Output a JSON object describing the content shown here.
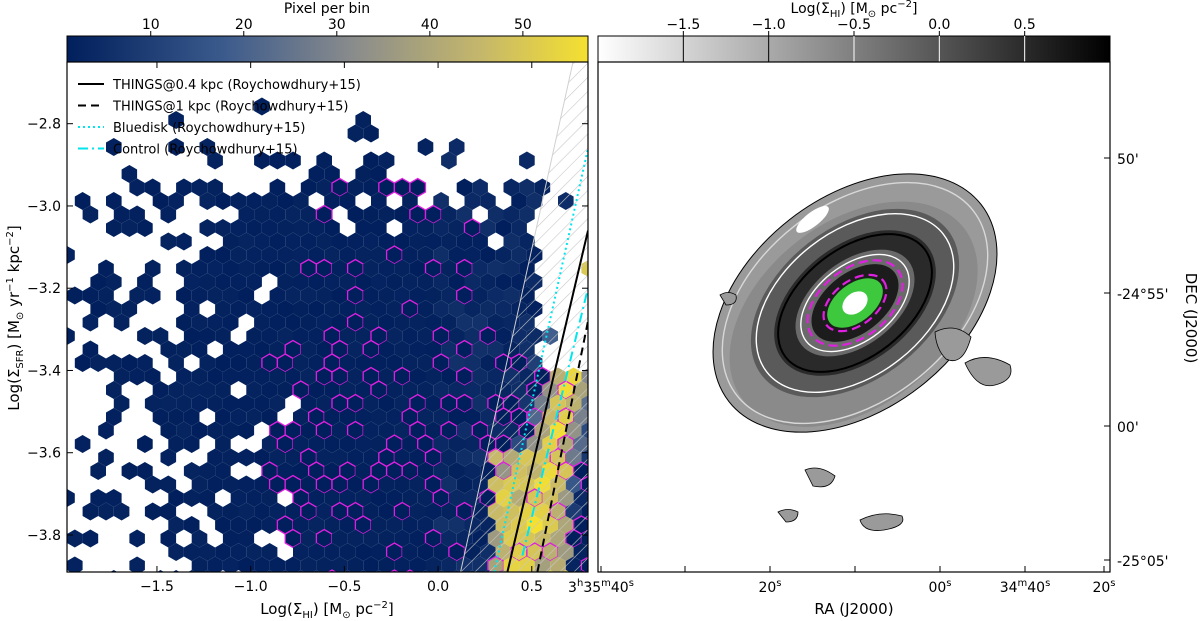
{
  "chart_data": [
    {
      "type": "hexbin",
      "panel": "left",
      "xlabel": "Log(Σ_HI) [M⊙ pc⁻²]",
      "ylabel": "Log(Σ_SFR) [M⊙ yr⁻¹ kpc⁻²]",
      "xlim": [
        -1.98,
        0.8
      ],
      "ylim": [
        -3.89,
        -2.65
      ],
      "xticks": [
        -1.5,
        -1.0,
        -0.5,
        0.0,
        0.5
      ],
      "xtick_labels": [
        "−1.5",
        "−1.0",
        "−0.5",
        "0.0",
        "0.5"
      ],
      "yticks": [
        -2.8,
        -3.0,
        -3.2,
        -3.4,
        -3.6,
        -3.8
      ],
      "ytick_labels": [
        "−2.8",
        "−3.0",
        "−3.2",
        "−3.4",
        "−3.6",
        "−3.8"
      ],
      "colorbar": {
        "label": "Pixel per bin",
        "range": [
          1,
          57
        ],
        "ticks": [
          10,
          20,
          30,
          40,
          50
        ],
        "tick_labels": [
          "10",
          "20",
          "30",
          "40",
          "50"
        ],
        "colors": [
          "#001f5c",
          "#3b5a8c",
          "#8a8c8c",
          "#c6b86a",
          "#f5e030"
        ]
      },
      "hatched_region_boundary": {
        "x_at_bottom": 0.12,
        "x_at_top": 0.72
      },
      "series": [
        {
          "name": "THINGS@0.4 kpc (Roychowdhury+15)",
          "style": "solid",
          "color": "#000000",
          "x": [
            0.37,
            0.8
          ],
          "y": [
            -3.89,
            -3.06
          ]
        },
        {
          "name": "THINGS@1 kpc (Roychowdhury+15)",
          "style": "dashed",
          "color": "#000000",
          "x": [
            0.53,
            0.8
          ],
          "y": [
            -3.89,
            -3.28
          ]
        },
        {
          "name": "Bluedisk (Roychowdhury+15)",
          "style": "dotted",
          "color": "#00e5ee",
          "x": [
            0.3,
            0.8
          ],
          "y": [
            -3.89,
            -2.86
          ]
        },
        {
          "name": "Control (Roychowdhury+15)",
          "style": "dashdot",
          "color": "#00e5ee",
          "x": [
            0.45,
            0.8
          ],
          "y": [
            -3.85,
            -3.2
          ]
        }
      ],
      "highlight_color": "#e020e0"
    },
    {
      "type": "image",
      "panel": "right",
      "xlabel": "RA (J2000)",
      "ylabel": "DEC (J2000)",
      "xtick_labels": [
        "3h35m40s",
        "20s",
        "00s",
        "34m40s",
        "20s"
      ],
      "ytick_labels": [
        "50'",
        "-24°55'",
        "00'",
        "-25°05'"
      ],
      "colorbar": {
        "label": "Log(Σ_HI) [M⊙ pc⁻²]",
        "range": [
          -2.0,
          1.0
        ],
        "ticks": [
          -1.5,
          -1.0,
          -0.5,
          0.0,
          0.5
        ],
        "tick_labels": [
          "−1.5",
          "−1.0",
          "−0.5",
          "0.0",
          "0.5"
        ],
        "colors": [
          "#ffffff",
          "#000000"
        ]
      },
      "contour_colors": [
        "#d8d8d8",
        "#ffffff",
        "#000000",
        "#e020e0",
        "#33cc33"
      ]
    }
  ],
  "labels": {
    "left_cbar_title": "Pixel per bin",
    "left_xlabel_main": "Log(Σ",
    "left_xlabel_sub": "HI",
    "left_xlabel_tail": ") [M",
    "left_xlabel_sun": "⊙",
    "left_xlabel_unit": " pc",
    "left_xlabel_exp": "−2",
    "left_xlabel_end": "]",
    "left_ylabel_main": "Log(Σ",
    "left_ylabel_sub": "SFR",
    "left_ylabel_tail": ") [M",
    "left_ylabel_sun": "⊙",
    "left_ylabel_unit": " yr",
    "left_ylabel_exp1": "−1",
    "left_ylabel_unit2": " kpc",
    "left_ylabel_exp2": "−2",
    "left_ylabel_end": "]",
    "right_cbar_main": "Log(Σ",
    "right_cbar_sub": "HI",
    "right_cbar_tail": ") [M",
    "right_cbar_sun": "⊙",
    "right_cbar_unit": " pc",
    "right_cbar_exp": "−2",
    "right_cbar_end": "]",
    "ra_label": "RA (J2000)",
    "dec_label": "DEC (J2000)",
    "ra_t1_a": "3",
    "ra_t1_h": "h",
    "ra_t1_b": "35",
    "ra_t1_m": "m",
    "ra_t1_c": "40",
    "ra_t1_s": "s",
    "ra_t2_a": "20",
    "ra_t2_s": "s",
    "ra_t3_a": "00",
    "ra_t3_s": "s",
    "ra_t4_a": "34",
    "ra_t4_m": "m",
    "ra_t4_b": "40",
    "ra_t4_s": "s",
    "ra_t5_a": "20",
    "ra_t5_s": "s",
    "dec_t1": "50'",
    "dec_t2": "-24°55'",
    "dec_t3": "00'",
    "dec_t4": "-25°05'"
  }
}
